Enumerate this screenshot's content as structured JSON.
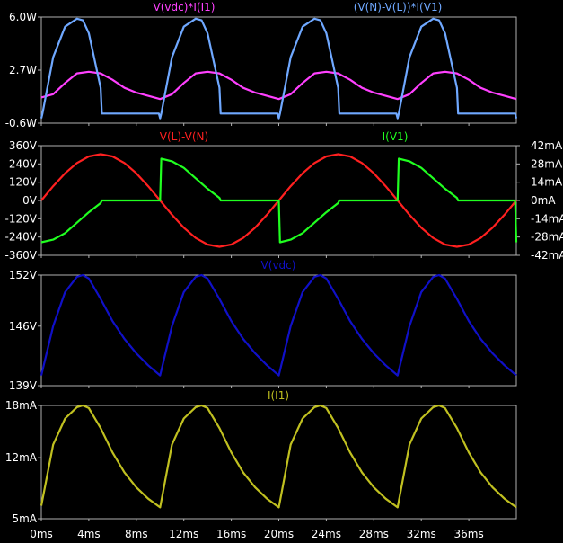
{
  "x_axis": {
    "ticks": [
      "0ms",
      "4ms",
      "8ms",
      "12ms",
      "16ms",
      "20ms",
      "24ms",
      "28ms",
      "32ms",
      "36ms"
    ],
    "range_ms": [
      0,
      40
    ]
  },
  "chart_data": [
    {
      "type": "line",
      "series": [
        {
          "name": "V(vdc)*I(I1)",
          "color": "#ff40ff",
          "x": [
            0,
            1,
            2,
            3,
            4,
            5,
            6,
            7,
            8,
            9,
            10,
            11,
            12,
            13,
            14,
            15,
            16,
            17,
            18,
            19,
            20,
            21,
            22,
            23,
            24,
            25,
            26,
            27,
            28,
            29,
            30,
            31,
            32,
            33,
            34,
            35,
            36,
            37,
            38,
            39,
            40
          ],
          "values": [
            1.0,
            1.2,
            1.9,
            2.5,
            2.6,
            2.5,
            2.1,
            1.6,
            1.3,
            1.1,
            0.9,
            1.2,
            1.9,
            2.5,
            2.6,
            2.5,
            2.1,
            1.6,
            1.3,
            1.1,
            0.9,
            1.2,
            1.9,
            2.5,
            2.6,
            2.5,
            2.1,
            1.6,
            1.3,
            1.1,
            0.9,
            1.2,
            1.9,
            2.5,
            2.6,
            2.5,
            2.1,
            1.6,
            1.3,
            1.1,
            0.9
          ]
        },
        {
          "name": "(V(N)-V(L))*I(V1)",
          "color": "#6fa8ff",
          "x": [
            0,
            0.1,
            1,
            2,
            3,
            3.5,
            4,
            5,
            5.1,
            9.9,
            10,
            10.1,
            11,
            12,
            13,
            13.5,
            14,
            15,
            15.1,
            19.9,
            20,
            20.1,
            21,
            22,
            23,
            23.5,
            24,
            25,
            25.1,
            29.9,
            30,
            30.1,
            31,
            32,
            33,
            33.5,
            34,
            35,
            35.1,
            39.9,
            40
          ],
          "values": [
            -0.3,
            0,
            3.5,
            5.4,
            5.9,
            5.8,
            5.0,
            1.6,
            0,
            0,
            -0.3,
            0,
            3.5,
            5.4,
            5.9,
            5.8,
            5.0,
            1.6,
            0,
            0,
            -0.3,
            0,
            3.5,
            5.4,
            5.9,
            5.8,
            5.0,
            1.6,
            0,
            0,
            -0.3,
            0,
            3.5,
            5.4,
            5.9,
            5.8,
            5.0,
            1.6,
            0,
            0,
            -0.3
          ]
        }
      ],
      "y_ticks": [
        "6.0W",
        "2.7W",
        "-0.6W"
      ],
      "ylim": [
        -0.6,
        6.0
      ]
    },
    {
      "type": "line",
      "series": [
        {
          "name": "V(L)-V(N)",
          "color": "#ff2020",
          "axis": "left",
          "x": [
            0,
            1,
            2,
            3,
            4,
            5,
            6,
            7,
            8,
            9,
            10,
            11,
            12,
            13,
            14,
            15,
            16,
            17,
            18,
            19,
            20,
            21,
            22,
            23,
            24,
            25,
            26,
            27,
            28,
            29,
            30,
            31,
            32,
            33,
            34,
            35,
            36,
            37,
            38,
            39,
            40
          ],
          "values": [
            0,
            94,
            179,
            246,
            289,
            304,
            289,
            246,
            179,
            94,
            0,
            -94,
            -179,
            -246,
            -289,
            -304,
            -289,
            -246,
            -179,
            -94,
            0,
            94,
            179,
            246,
            289,
            304,
            289,
            246,
            179,
            94,
            0,
            -94,
            -179,
            -246,
            -289,
            -304,
            -289,
            -246,
            -179,
            -94,
            0
          ]
        },
        {
          "name": "I(V1)",
          "color": "#20ff20",
          "axis": "right",
          "x": [
            0,
            1,
            2,
            3,
            4,
            5,
            5.1,
            9.9,
            10,
            10.1,
            11,
            12,
            13,
            14,
            15,
            15.1,
            19.9,
            20,
            20.1,
            21,
            22,
            23,
            24,
            25,
            25.1,
            29.9,
            30,
            30.1,
            31,
            32,
            33,
            34,
            35,
            35.1,
            39.9,
            40
          ],
          "values": [
            -32,
            -30,
            -25,
            -17,
            -9,
            -2,
            0,
            0,
            0,
            32,
            30,
            25,
            17,
            9,
            2,
            0,
            0,
            0,
            -32,
            -30,
            -25,
            -17,
            -9,
            -2,
            0,
            0,
            0,
            32,
            30,
            25,
            17,
            9,
            2,
            0,
            0,
            -32
          ]
        }
      ],
      "y_ticks_left": [
        "360V",
        "240V",
        "120V",
        "0V",
        "-120V",
        "-240V",
        "-360V"
      ],
      "y_ticks_right": [
        "42mA",
        "28mA",
        "14mA",
        "0mA",
        "-14mA",
        "-28mA",
        "-42mA"
      ],
      "ylim_left": [
        -360,
        360
      ],
      "ylim_right": [
        -42,
        42
      ]
    },
    {
      "type": "line",
      "series": [
        {
          "name": "V(vdc)",
          "color": "#1010c8",
          "x": [
            0,
            1,
            2,
            3,
            3.5,
            4,
            5,
            6,
            7,
            8,
            9,
            10,
            11,
            12,
            13,
            13.5,
            14,
            15,
            16,
            17,
            18,
            19,
            20,
            21,
            22,
            23,
            23.5,
            24,
            25,
            26,
            27,
            28,
            29,
            30,
            31,
            32,
            33,
            33.5,
            34,
            35,
            36,
            37,
            38,
            39,
            40
          ],
          "values": [
            140.2,
            146,
            150,
            151.8,
            152,
            151.6,
            149.2,
            146.6,
            144.5,
            142.8,
            141.4,
            140.2,
            146,
            150,
            151.8,
            152,
            151.6,
            149.2,
            146.6,
            144.5,
            142.8,
            141.4,
            140.2,
            146,
            150,
            151.8,
            152,
            151.6,
            149.2,
            146.6,
            144.5,
            142.8,
            141.4,
            140.2,
            146,
            150,
            151.8,
            152,
            151.6,
            149.2,
            146.6,
            144.5,
            142.8,
            141.4,
            140.2
          ]
        }
      ],
      "y_ticks": [
        "152V",
        "146V",
        "139V"
      ],
      "ylim": [
        139,
        152
      ]
    },
    {
      "type": "line",
      "series": [
        {
          "name": "I(I1)",
          "color": "#c0c020",
          "x": [
            0,
            1,
            2,
            3,
            3.5,
            4,
            5,
            6,
            7,
            8,
            9,
            10,
            11,
            12,
            13,
            13.5,
            14,
            15,
            16,
            17,
            18,
            19,
            20,
            21,
            22,
            23,
            23.5,
            24,
            25,
            26,
            27,
            28,
            29,
            30,
            31,
            32,
            33,
            33.5,
            34,
            35,
            36,
            37,
            38,
            39,
            40
          ],
          "values": [
            6.5,
            13.5,
            16.5,
            17.8,
            18,
            17.7,
            15.4,
            12.6,
            10.3,
            8.6,
            7.3,
            6.3,
            13.5,
            16.5,
            17.8,
            18,
            17.7,
            15.4,
            12.6,
            10.3,
            8.6,
            7.3,
            6.3,
            13.5,
            16.5,
            17.8,
            18,
            17.7,
            15.4,
            12.6,
            10.3,
            8.6,
            7.3,
            6.3,
            13.5,
            16.5,
            17.8,
            18,
            17.7,
            15.4,
            12.6,
            10.3,
            8.6,
            7.3,
            6.3
          ]
        }
      ],
      "y_ticks": [
        "18mA",
        "12mA",
        "5mA"
      ],
      "ylim": [
        5,
        18
      ]
    }
  ],
  "colors": {
    "background": "#000000",
    "frame": "#b0b0b0",
    "axis_text": "#ffffff"
  }
}
